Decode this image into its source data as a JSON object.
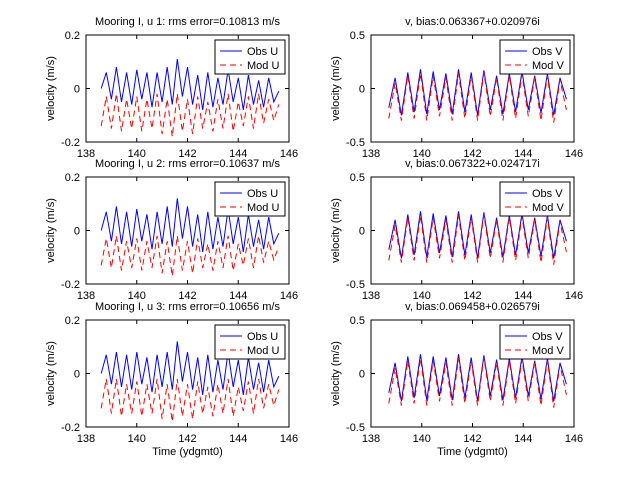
{
  "chart_data": [
    {
      "type": "line",
      "title": "Mooring I, u 1: rms error=0.10813 m/s",
      "ylabel": "velocity (m/s)",
      "xlabel": "",
      "xlim": [
        138,
        146
      ],
      "ylim": [
        -0.2,
        0.2
      ],
      "xticks": [
        "138",
        "140",
        "142",
        "144",
        "146"
      ],
      "yticks": [
        "-0.2",
        "0",
        "0.2"
      ],
      "legend_position": "top-right",
      "series": [
        {
          "name": "Obs U",
          "color": "#0000ff",
          "dash": "solid",
          "x": [
            138.6,
            138.8,
            139.0,
            139.2,
            139.4,
            139.6,
            139.8,
            140.0,
            140.2,
            140.4,
            140.6,
            140.8,
            141.0,
            141.2,
            141.4,
            141.6,
            141.8,
            142.0,
            142.2,
            142.4,
            142.6,
            142.8,
            143.0,
            143.2,
            143.4,
            143.6,
            143.8,
            144.0,
            144.2,
            144.4,
            144.6,
            144.8,
            145.0,
            145.2,
            145.4,
            145.6
          ],
          "y": [
            0.0,
            0.06,
            -0.04,
            0.08,
            -0.05,
            0.06,
            -0.06,
            0.07,
            -0.04,
            0.06,
            -0.07,
            0.06,
            -0.05,
            0.08,
            -0.06,
            0.11,
            -0.03,
            0.08,
            -0.06,
            0.05,
            -0.08,
            0.06,
            -0.07,
            0.04,
            -0.06,
            0.07,
            -0.05,
            0.04,
            -0.08,
            0.05,
            -0.06,
            0.03,
            -0.07,
            0.04,
            -0.05,
            -0.01
          ]
        },
        {
          "name": "Mod U",
          "color": "#ff0000",
          "dash": "dashed",
          "x": [
            138.6,
            138.8,
            139.0,
            139.2,
            139.4,
            139.6,
            139.8,
            140.0,
            140.2,
            140.4,
            140.6,
            140.8,
            141.0,
            141.2,
            141.4,
            141.6,
            141.8,
            142.0,
            142.2,
            142.4,
            142.6,
            142.8,
            143.0,
            143.2,
            143.4,
            143.6,
            143.8,
            144.0,
            144.2,
            144.4,
            144.6,
            144.8,
            145.0,
            145.2,
            145.4,
            145.6
          ],
          "y": [
            -0.14,
            -0.03,
            -0.15,
            -0.02,
            -0.16,
            -0.04,
            -0.15,
            -0.03,
            -0.16,
            -0.04,
            -0.15,
            -0.02,
            -0.17,
            -0.04,
            -0.18,
            -0.02,
            -0.16,
            -0.04,
            -0.17,
            -0.03,
            -0.15,
            -0.05,
            -0.16,
            -0.04,
            -0.15,
            -0.02,
            -0.16,
            -0.05,
            -0.14,
            -0.03,
            -0.15,
            -0.02,
            -0.13,
            -0.04,
            -0.12,
            -0.06
          ]
        }
      ]
    },
    {
      "type": "line",
      "title": "v, bias:0.063367+0.020976i",
      "ylabel": "velocity (m/s)",
      "xlabel": "",
      "xlim": [
        138,
        146
      ],
      "ylim": [
        -0.5,
        0.5
      ],
      "xticks": [
        "138",
        "140",
        "142",
        "144",
        "146"
      ],
      "yticks": [
        "-0.5",
        "0",
        "0.5"
      ],
      "legend_position": "top-right",
      "series": [
        {
          "name": "Obs V",
          "color": "#0000ff",
          "dash": "solid",
          "x": [
            138.7,
            138.95,
            139.2,
            139.45,
            139.7,
            139.95,
            140.2,
            140.45,
            140.7,
            140.95,
            141.2,
            141.45,
            141.7,
            141.95,
            142.2,
            142.45,
            142.7,
            142.95,
            143.2,
            143.45,
            143.7,
            143.95,
            144.2,
            144.45,
            144.7,
            144.95,
            145.2,
            145.45,
            145.7
          ],
          "y": [
            -0.18,
            0.1,
            -0.25,
            0.15,
            -0.22,
            0.18,
            -0.24,
            0.16,
            -0.2,
            0.14,
            -0.24,
            0.18,
            -0.22,
            0.15,
            -0.25,
            0.17,
            -0.2,
            0.12,
            -0.24,
            0.14,
            -0.22,
            0.16,
            -0.2,
            0.12,
            -0.23,
            0.14,
            -0.25,
            0.1,
            -0.1
          ]
        },
        {
          "name": "Mod V",
          "color": "#ff0000",
          "dash": "dashed",
          "x": [
            138.7,
            138.95,
            139.2,
            139.45,
            139.7,
            139.95,
            140.2,
            140.45,
            140.7,
            140.95,
            141.2,
            141.45,
            141.7,
            141.95,
            142.2,
            142.45,
            142.7,
            142.95,
            143.2,
            143.45,
            143.7,
            143.95,
            144.2,
            144.45,
            144.7,
            144.95,
            145.2,
            145.45,
            145.7
          ],
          "y": [
            -0.28,
            0.05,
            -0.3,
            0.12,
            -0.28,
            0.14,
            -0.3,
            0.12,
            -0.26,
            0.1,
            -0.3,
            0.14,
            -0.28,
            0.12,
            -0.3,
            0.15,
            -0.26,
            0.1,
            -0.3,
            0.12,
            -0.28,
            0.13,
            -0.26,
            0.1,
            -0.3,
            0.12,
            -0.32,
            0.08,
            -0.2
          ]
        }
      ]
    },
    {
      "type": "line",
      "title": "Mooring I, u 2: rms error=0.10637 m/s",
      "ylabel": "velocity (m/s)",
      "xlabel": "",
      "xlim": [
        138,
        146
      ],
      "ylim": [
        -0.2,
        0.2
      ],
      "xticks": [
        "138",
        "140",
        "142",
        "144",
        "146"
      ],
      "yticks": [
        "-0.2",
        "0",
        "0.2"
      ],
      "legend_position": "top-right",
      "series": [
        {
          "name": "Obs U",
          "color": "#0000ff",
          "dash": "solid",
          "x": [
            138.6,
            138.8,
            139.0,
            139.2,
            139.4,
            139.6,
            139.8,
            140.0,
            140.2,
            140.4,
            140.6,
            140.8,
            141.0,
            141.2,
            141.4,
            141.6,
            141.8,
            142.0,
            142.2,
            142.4,
            142.6,
            142.8,
            143.0,
            143.2,
            143.4,
            143.6,
            143.8,
            144.0,
            144.2,
            144.4,
            144.6,
            144.8,
            145.0,
            145.2,
            145.4,
            145.6
          ],
          "y": [
            0.0,
            0.07,
            -0.04,
            0.09,
            -0.05,
            0.07,
            -0.06,
            0.08,
            -0.04,
            0.06,
            -0.07,
            0.07,
            -0.05,
            0.09,
            -0.06,
            0.12,
            -0.03,
            0.09,
            -0.06,
            0.06,
            -0.08,
            0.07,
            -0.07,
            0.05,
            -0.06,
            0.08,
            -0.05,
            0.05,
            -0.08,
            0.06,
            -0.06,
            0.04,
            -0.07,
            0.05,
            -0.05,
            -0.01
          ]
        },
        {
          "name": "Mod U",
          "color": "#ff0000",
          "dash": "dashed",
          "x": [
            138.6,
            138.8,
            139.0,
            139.2,
            139.4,
            139.6,
            139.8,
            140.0,
            140.2,
            140.4,
            140.6,
            140.8,
            141.0,
            141.2,
            141.4,
            141.6,
            141.8,
            142.0,
            142.2,
            142.4,
            142.6,
            142.8,
            143.0,
            143.2,
            143.4,
            143.6,
            143.8,
            144.0,
            144.2,
            144.4,
            144.6,
            144.8,
            145.0,
            145.2,
            145.4,
            145.6
          ],
          "y": [
            -0.13,
            -0.03,
            -0.14,
            -0.02,
            -0.15,
            -0.04,
            -0.14,
            -0.03,
            -0.15,
            -0.04,
            -0.14,
            -0.02,
            -0.16,
            -0.04,
            -0.17,
            -0.02,
            -0.15,
            -0.04,
            -0.16,
            -0.03,
            -0.14,
            -0.05,
            -0.15,
            -0.04,
            -0.14,
            -0.02,
            -0.15,
            -0.05,
            -0.13,
            -0.03,
            -0.14,
            -0.02,
            -0.12,
            -0.04,
            -0.11,
            -0.06
          ]
        }
      ]
    },
    {
      "type": "line",
      "title": "v, bias:0.067322+0.024717i",
      "ylabel": "velocity (m/s)",
      "xlabel": "",
      "xlim": [
        138,
        146
      ],
      "ylim": [
        -0.5,
        0.5
      ],
      "xticks": [
        "138",
        "140",
        "142",
        "144",
        "146"
      ],
      "yticks": [
        "-0.5",
        "0",
        "0.5"
      ],
      "legend_position": "top-right",
      "series": [
        {
          "name": "Obs V",
          "color": "#0000ff",
          "dash": "solid",
          "x": [
            138.7,
            138.95,
            139.2,
            139.45,
            139.7,
            139.95,
            140.2,
            140.45,
            140.7,
            140.95,
            141.2,
            141.45,
            141.7,
            141.95,
            142.2,
            142.45,
            142.7,
            142.95,
            143.2,
            143.45,
            143.7,
            143.95,
            144.2,
            144.45,
            144.7,
            144.95,
            145.2,
            145.45,
            145.7
          ],
          "y": [
            -0.18,
            0.1,
            -0.26,
            0.15,
            -0.23,
            0.18,
            -0.25,
            0.16,
            -0.21,
            0.14,
            -0.25,
            0.18,
            -0.23,
            0.15,
            -0.26,
            0.17,
            -0.21,
            0.12,
            -0.25,
            0.14,
            -0.23,
            0.16,
            -0.21,
            0.12,
            -0.24,
            0.14,
            -0.26,
            0.1,
            -0.1
          ]
        },
        {
          "name": "Mod V",
          "color": "#ff0000",
          "dash": "dashed",
          "x": [
            138.7,
            138.95,
            139.2,
            139.45,
            139.7,
            139.95,
            140.2,
            140.45,
            140.7,
            140.95,
            141.2,
            141.45,
            141.7,
            141.95,
            142.2,
            142.45,
            142.7,
            142.95,
            143.2,
            143.45,
            143.7,
            143.95,
            144.2,
            144.45,
            144.7,
            144.95,
            145.2,
            145.45,
            145.7
          ],
          "y": [
            -0.28,
            0.05,
            -0.3,
            0.12,
            -0.28,
            0.14,
            -0.3,
            0.12,
            -0.26,
            0.1,
            -0.3,
            0.14,
            -0.28,
            0.12,
            -0.3,
            0.15,
            -0.26,
            0.1,
            -0.3,
            0.12,
            -0.28,
            0.13,
            -0.26,
            0.1,
            -0.3,
            0.12,
            -0.32,
            0.08,
            -0.2
          ]
        }
      ]
    },
    {
      "type": "line",
      "title": "Mooring I, u 3: rms error=0.10656 m/s",
      "ylabel": "velocity (m/s)",
      "xlabel": "Time (ydgmt0)",
      "xlim": [
        138,
        146
      ],
      "ylim": [
        -0.2,
        0.2
      ],
      "xticks": [
        "138",
        "140",
        "142",
        "144",
        "146"
      ],
      "yticks": [
        "-0.2",
        "0",
        "0.2"
      ],
      "legend_position": "top-right",
      "series": [
        {
          "name": "Obs U",
          "color": "#0000ff",
          "dash": "solid",
          "x": [
            138.6,
            138.8,
            139.0,
            139.2,
            139.4,
            139.6,
            139.8,
            140.0,
            140.2,
            140.4,
            140.6,
            140.8,
            141.0,
            141.2,
            141.4,
            141.6,
            141.8,
            142.0,
            142.2,
            142.4,
            142.6,
            142.8,
            143.0,
            143.2,
            143.4,
            143.6,
            143.8,
            144.0,
            144.2,
            144.4,
            144.6,
            144.8,
            145.0,
            145.2,
            145.4,
            145.6
          ],
          "y": [
            0.0,
            0.07,
            -0.04,
            0.08,
            -0.05,
            0.07,
            -0.06,
            0.08,
            -0.04,
            0.06,
            -0.07,
            0.07,
            -0.05,
            0.08,
            -0.06,
            0.12,
            -0.03,
            0.08,
            -0.06,
            0.06,
            -0.08,
            0.07,
            -0.07,
            0.05,
            -0.06,
            0.08,
            -0.05,
            0.05,
            -0.08,
            0.06,
            -0.06,
            0.04,
            -0.07,
            0.05,
            -0.05,
            -0.01
          ]
        },
        {
          "name": "Mod U",
          "color": "#ff0000",
          "dash": "dashed",
          "x": [
            138.6,
            138.8,
            139.0,
            139.2,
            139.4,
            139.6,
            139.8,
            140.0,
            140.2,
            140.4,
            140.6,
            140.8,
            141.0,
            141.2,
            141.4,
            141.6,
            141.8,
            142.0,
            142.2,
            142.4,
            142.6,
            142.8,
            143.0,
            143.2,
            143.4,
            143.6,
            143.8,
            144.0,
            144.2,
            144.4,
            144.6,
            144.8,
            145.0,
            145.2,
            145.4,
            145.6
          ],
          "y": [
            -0.13,
            -0.02,
            -0.15,
            -0.02,
            -0.16,
            -0.04,
            -0.15,
            -0.03,
            -0.16,
            -0.04,
            -0.15,
            -0.02,
            -0.17,
            -0.04,
            -0.18,
            -0.02,
            -0.16,
            -0.04,
            -0.17,
            -0.03,
            -0.15,
            -0.05,
            -0.16,
            -0.04,
            -0.15,
            -0.02,
            -0.16,
            -0.05,
            -0.14,
            -0.03,
            -0.15,
            -0.02,
            -0.13,
            -0.04,
            -0.12,
            -0.06
          ]
        }
      ]
    },
    {
      "type": "line",
      "title": "v, bias:0.069458+0.026579i",
      "ylabel": "velocity (m/s)",
      "xlabel": "Time (ydgmt0)",
      "xlim": [
        138,
        146
      ],
      "ylim": [
        -0.5,
        0.5
      ],
      "xticks": [
        "138",
        "140",
        "142",
        "144",
        "146"
      ],
      "yticks": [
        "-0.5",
        "0",
        "0.5"
      ],
      "legend_position": "top-right",
      "series": [
        {
          "name": "Obs V",
          "color": "#0000ff",
          "dash": "solid",
          "x": [
            138.7,
            138.95,
            139.2,
            139.45,
            139.7,
            139.95,
            140.2,
            140.45,
            140.7,
            140.95,
            141.2,
            141.45,
            141.7,
            141.95,
            142.2,
            142.45,
            142.7,
            142.95,
            143.2,
            143.45,
            143.7,
            143.95,
            144.2,
            144.45,
            144.7,
            144.95,
            145.2,
            145.45,
            145.7
          ],
          "y": [
            -0.18,
            0.1,
            -0.26,
            0.16,
            -0.23,
            0.18,
            -0.25,
            0.16,
            -0.21,
            0.15,
            -0.25,
            0.18,
            -0.23,
            0.15,
            -0.26,
            0.17,
            -0.21,
            0.13,
            -0.25,
            0.14,
            -0.23,
            0.16,
            -0.21,
            0.12,
            -0.24,
            0.14,
            -0.26,
            0.1,
            -0.1
          ]
        },
        {
          "name": "Mod V",
          "color": "#ff0000",
          "dash": "dashed",
          "x": [
            138.7,
            138.95,
            139.2,
            139.45,
            139.7,
            139.95,
            140.2,
            140.45,
            140.7,
            140.95,
            141.2,
            141.45,
            141.7,
            141.95,
            142.2,
            142.45,
            142.7,
            142.95,
            143.2,
            143.45,
            143.7,
            143.95,
            144.2,
            144.45,
            144.7,
            144.95,
            145.2,
            145.45,
            145.7
          ],
          "y": [
            -0.28,
            0.05,
            -0.3,
            0.12,
            -0.28,
            0.14,
            -0.3,
            0.12,
            -0.26,
            0.1,
            -0.3,
            0.14,
            -0.28,
            0.12,
            -0.3,
            0.15,
            -0.26,
            0.1,
            -0.3,
            0.12,
            -0.28,
            0.13,
            -0.26,
            0.1,
            -0.3,
            0.12,
            -0.32,
            0.08,
            -0.2
          ]
        }
      ]
    }
  ]
}
